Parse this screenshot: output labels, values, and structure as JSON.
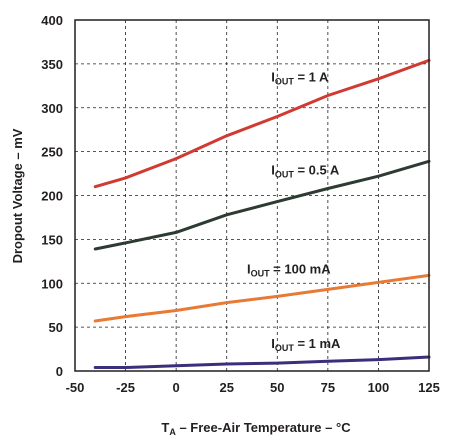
{
  "chart_data": {
    "type": "line",
    "xlabel": {
      "main": "T",
      "sub": "A",
      "rest": " – Free-Air Temperature – °C"
    },
    "ylabel": "Dropout Voltage – mV",
    "xlim": [
      -50,
      125
    ],
    "ylim": [
      0,
      400
    ],
    "xticks": [
      -50,
      -25,
      0,
      25,
      50,
      75,
      100,
      125
    ],
    "yticks": [
      0,
      50,
      100,
      150,
      200,
      250,
      300,
      350,
      400
    ],
    "grid": true,
    "x": [
      -40,
      -25,
      0,
      25,
      50,
      75,
      100,
      125
    ],
    "series": [
      {
        "name": {
          "main": "I",
          "sub": "OUT",
          "rest": " = 1 A"
        },
        "color": "#d13a32",
        "values": [
          210,
          220,
          242,
          268,
          290,
          314,
          333,
          354
        ],
        "label_pos": [
          47,
          330
        ]
      },
      {
        "name": {
          "main": "I",
          "sub": "OUT",
          "rest": " = 0.5 A"
        },
        "color": "#2d3b32",
        "values": [
          139,
          146,
          158,
          178,
          193,
          208,
          222,
          239
        ],
        "label_pos": [
          47,
          224
        ]
      },
      {
        "name": {
          "main": "I",
          "sub": "OUT",
          "rest": " = 100 mA"
        },
        "color": "#e87a35",
        "values": [
          57,
          62,
          69,
          78,
          85,
          93,
          101,
          109
        ],
        "label_pos": [
          35,
          111
        ]
      },
      {
        "name": {
          "main": "I",
          "sub": "OUT",
          "rest": " = 1 mA"
        },
        "color": "#3b2f7c",
        "values": [
          4,
          4,
          6,
          8,
          9,
          11,
          13,
          16
        ],
        "label_pos": [
          47,
          26
        ]
      }
    ]
  }
}
